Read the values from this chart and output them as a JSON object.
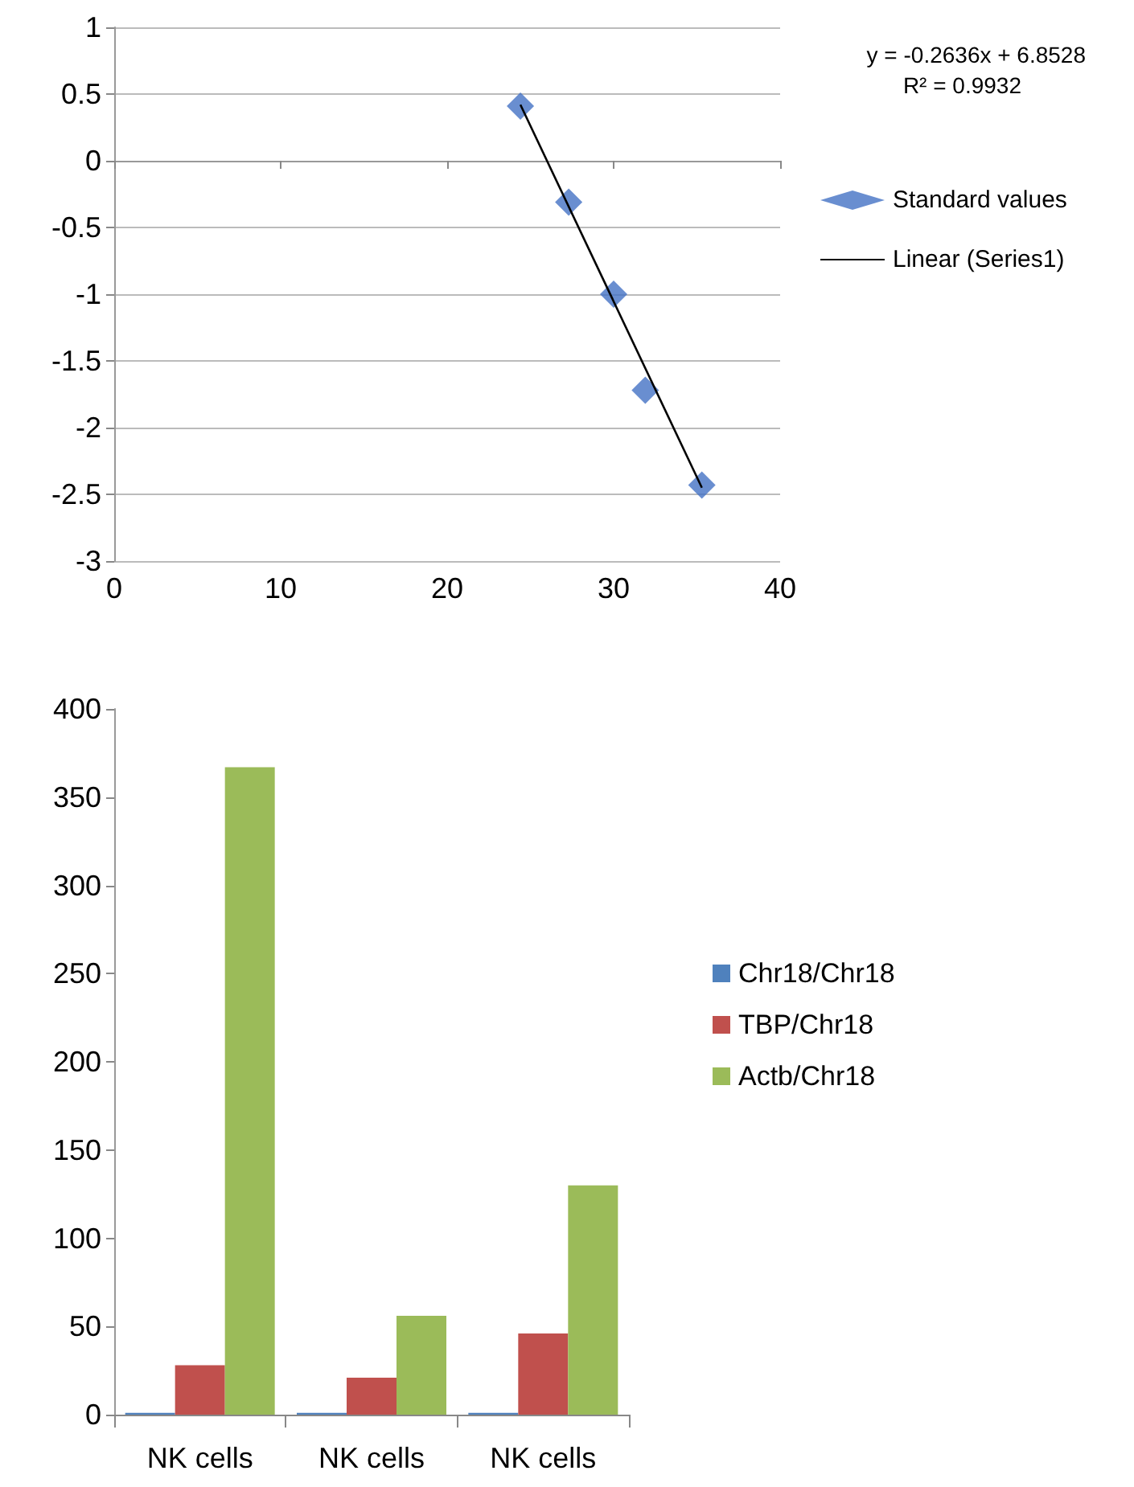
{
  "chart_data": [
    {
      "type": "scatter",
      "x": [
        24.4,
        27.3,
        30.0,
        31.9,
        35.3
      ],
      "xlim": [
        0,
        40
      ],
      "xticks": [
        0,
        10,
        20,
        30,
        40
      ],
      "ylim": [
        -3,
        1
      ],
      "yticks": [
        -3,
        -2.5,
        -2,
        -1.5,
        -1,
        -0.5,
        0,
        0.5,
        1
      ],
      "grid": "y",
      "legend": "right",
      "marker": "diamond",
      "annotations": [
        "y = -0.2636x + 6.8528",
        "R² = 0.9932"
      ],
      "series": [
        {
          "name": "Standard values",
          "color": "#4472c4",
          "values": [
            0.41,
            -0.31,
            -1.0,
            -1.72,
            -2.43
          ]
        },
        {
          "name": "Linear (Series1)",
          "type": "line",
          "color": "#000000",
          "marker": "none",
          "x": [
            24.4,
            35.3
          ],
          "values": [
            0.42,
            -2.45
          ]
        }
      ]
    },
    {
      "type": "bar",
      "categories": [
        "NK cells",
        "NK cells",
        "NK cells"
      ],
      "ylim": [
        0,
        400
      ],
      "yticks": [
        0,
        50,
        100,
        150,
        200,
        250,
        300,
        350,
        400
      ],
      "grid": false,
      "legend": "right",
      "series": [
        {
          "name": "Chr18/Chr18",
          "color": "#4f81bd",
          "values": [
            1,
            1,
            1
          ]
        },
        {
          "name": "TBP/Chr18",
          "color": "#c0504d",
          "values": [
            28,
            21,
            46
          ]
        },
        {
          "name": "Actb/Chr18",
          "color": "#9bbb59",
          "values": [
            367,
            56,
            130
          ]
        }
      ]
    }
  ]
}
